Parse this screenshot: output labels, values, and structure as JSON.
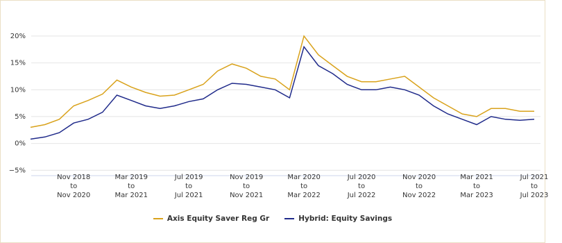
{
  "chart_data": {
    "type": "line",
    "categories": [
      null,
      null,
      null,
      "Nov 2018\nto\nNov 2020",
      null,
      null,
      null,
      "Mar 2019\nto\nMar 2021",
      null,
      null,
      null,
      "Jul 2019\nto\nJul 2021",
      null,
      null,
      null,
      "Nov 2019\nto\nNov 2021",
      null,
      null,
      null,
      "Mar 2020\nto\nMar 2022",
      null,
      null,
      null,
      "Jul 2020\nto\nJul 2022",
      null,
      null,
      null,
      "Nov 2020\nto\nNov 2022",
      null,
      null,
      null,
      "Mar 2021\nto\nMar 2023",
      null,
      null,
      null,
      "Jul 2021\nto\nJul 2023"
    ],
    "series": [
      {
        "name": "Axis Equity Saver Reg Gr",
        "color": "#d9a21b",
        "values": [
          3.0,
          3.5,
          4.5,
          7.0,
          8.0,
          9.2,
          11.8,
          10.5,
          9.5,
          8.8,
          9.0,
          10.0,
          11.0,
          13.5,
          14.8,
          14.0,
          12.5,
          12.0,
          10.0,
          20.0,
          16.5,
          14.5,
          12.5,
          11.5,
          11.5,
          12.0,
          12.5,
          10.5,
          8.5,
          7.0,
          5.5,
          5.0,
          6.5,
          6.5,
          6.0,
          6.0
        ]
      },
      {
        "name": "Hybrid: Equity Savings",
        "color": "#1f2a8a",
        "values": [
          0.8,
          1.2,
          2.0,
          3.8,
          4.5,
          5.8,
          9.0,
          8.0,
          7.0,
          6.5,
          7.0,
          7.8,
          8.3,
          10.0,
          11.2,
          11.0,
          10.5,
          10.0,
          8.5,
          18.0,
          14.5,
          13.0,
          11.0,
          10.0,
          10.0,
          10.5,
          10.0,
          9.0,
          7.0,
          5.5,
          4.5,
          3.5,
          5.0,
          4.5,
          4.3,
          4.5
        ]
      }
    ],
    "ylim": [
      -6,
      24
    ],
    "yticks": [
      {
        "value": -5,
        "label": "−5%"
      },
      {
        "value": 0,
        "label": "0%"
      },
      {
        "value": 5,
        "label": "5%"
      },
      {
        "value": 10,
        "label": "10%"
      },
      {
        "value": 15,
        "label": "15%"
      },
      {
        "value": 20,
        "label": "20%"
      }
    ],
    "grid": true
  }
}
